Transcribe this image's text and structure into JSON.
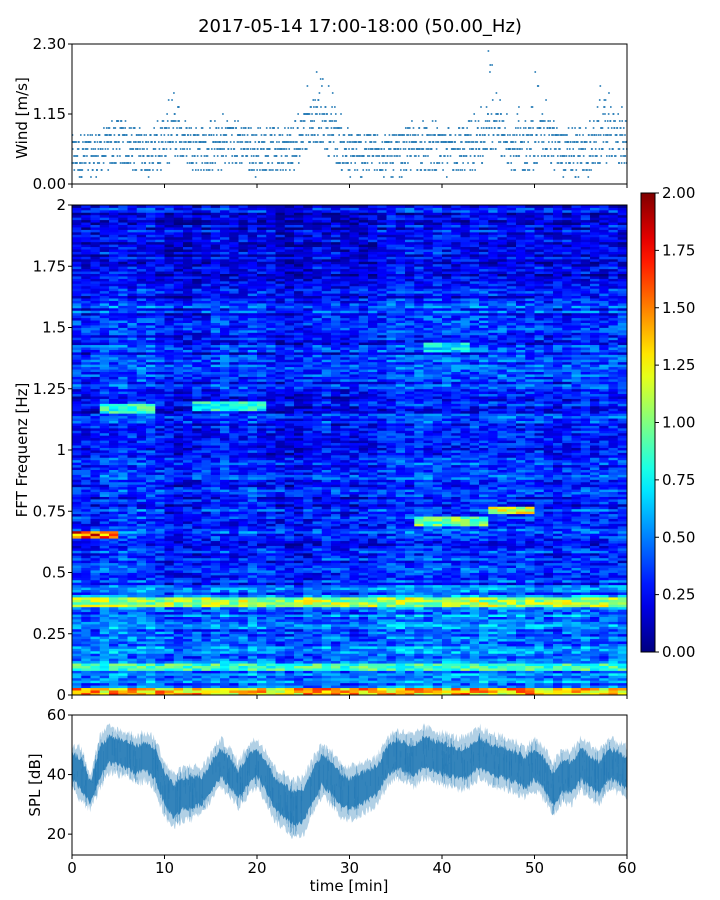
{
  "figure": {
    "title": "2017-05-14 17:00-18:00 (50.00_Hz)"
  },
  "colors": {
    "series": "#1f77b4",
    "jet": [
      "#00007f",
      "#0000ff",
      "#007fff",
      "#00ffff",
      "#7fff7f",
      "#ffff00",
      "#ff7f00",
      "#ff0000",
      "#7f0000"
    ]
  },
  "chart_data": [
    {
      "type": "scatter",
      "name": "wind",
      "ylabel": "Wind [m/s]",
      "xlim": [
        0,
        60
      ],
      "ylim": [
        0,
        2.3
      ],
      "y_ticks": [
        0,
        1.15,
        2.3
      ],
      "y_tick_labels": [
        "0.00",
        "1.15",
        "2.30"
      ],
      "x_ticks": [
        0,
        10,
        20,
        30,
        40,
        50,
        60
      ],
      "quantization_step": 0.115,
      "approx_points": 1800,
      "envelope": {
        "t": [
          0,
          2,
          4,
          5,
          6,
          8,
          10,
          11,
          12,
          14,
          16,
          17,
          18,
          20,
          22,
          24,
          25,
          26,
          27,
          28,
          30,
          32,
          35,
          37,
          40,
          42,
          44,
          45,
          46,
          47,
          48,
          50,
          51,
          52,
          54,
          56,
          57,
          58,
          60
        ],
        "median": [
          0.45,
          0.45,
          0.55,
          0.7,
          0.6,
          0.5,
          0.55,
          0.8,
          0.7,
          0.55,
          0.55,
          0.7,
          0.65,
          0.5,
          0.55,
          0.5,
          0.85,
          1.0,
          1.0,
          0.8,
          0.45,
          0.5,
          0.45,
          0.55,
          0.5,
          0.5,
          0.55,
          0.8,
          0.8,
          0.65,
          0.55,
          0.6,
          0.8,
          0.6,
          0.45,
          0.5,
          0.7,
          0.75,
          0.6
        ],
        "max": [
          0.7,
          0.8,
          1.0,
          1.2,
          1.05,
          0.9,
          1.1,
          1.75,
          1.1,
          1.0,
          1.2,
          1.2,
          1.05,
          0.9,
          1.0,
          1.0,
          1.7,
          1.85,
          1.75,
          1.75,
          0.8,
          0.9,
          0.8,
          1.1,
          1.0,
          0.9,
          1.2,
          2.3,
          1.55,
          1.3,
          1.15,
          2.0,
          1.5,
          1.1,
          1.0,
          1.0,
          1.6,
          1.55,
          1.1
        ]
      }
    },
    {
      "type": "heatmap",
      "name": "spectrogram",
      "ylabel": "FFT Frequenz [Hz]",
      "xlim": [
        0,
        60
      ],
      "ylim": [
        0,
        2
      ],
      "y_ticks": [
        0,
        0.25,
        0.5,
        0.75,
        1,
        1.25,
        1.5,
        1.75,
        2
      ],
      "y_tick_labels": [
        "0",
        "0.25",
        "0.5",
        "0.75",
        "1",
        "1.25",
        "1.5",
        "1.75",
        "2"
      ],
      "x_ticks": [
        0,
        10,
        20,
        30,
        40,
        50,
        60
      ],
      "colormap": "jet",
      "clim": [
        0,
        2
      ],
      "colorbar_ticks": [
        0,
        0.25,
        0.5,
        0.75,
        1,
        1.25,
        1.5,
        1.75,
        2
      ],
      "colorbar_tick_labels": [
        "0.00",
        "0.25",
        "0.50",
        "0.75",
        "1.00",
        "1.25",
        "1.50",
        "1.75",
        "2.00"
      ],
      "n_time_bins": 60,
      "n_freq_bins": 200,
      "background_level": 0.3,
      "features": [
        {
          "f": [
            0.0,
            0.03
          ],
          "t": [
            0,
            60
          ],
          "level": 1.4
        },
        {
          "f": [
            0.1,
            0.13
          ],
          "t": [
            0,
            60
          ],
          "level": 0.9
        },
        {
          "f": [
            0.36,
            0.4
          ],
          "t": [
            0,
            60
          ],
          "level": 1.1
        },
        {
          "f": [
            0.64,
            0.67
          ],
          "t": [
            0,
            5
          ],
          "level": 1.6
        },
        {
          "f": [
            0.69,
            0.73
          ],
          "t": [
            37,
            45
          ],
          "level": 1.0
        },
        {
          "f": [
            0.74,
            0.77
          ],
          "t": [
            45,
            50
          ],
          "level": 1.2
        },
        {
          "f": [
            1.15,
            1.19
          ],
          "t": [
            3,
            9
          ],
          "level": 0.9
        },
        {
          "f": [
            1.16,
            1.2
          ],
          "t": [
            13,
            21
          ],
          "level": 0.8
        },
        {
          "f": [
            1.4,
            1.44
          ],
          "t": [
            38,
            43
          ],
          "level": 0.75
        }
      ]
    },
    {
      "type": "area",
      "name": "spl",
      "ylabel": "SPL [dB]",
      "xlabel": "time [min]",
      "xlim": [
        0,
        60
      ],
      "ylim": [
        13,
        60
      ],
      "y_ticks": [
        20,
        40,
        60
      ],
      "y_tick_labels": [
        "20",
        "40",
        "60"
      ],
      "x_ticks": [
        0,
        10,
        20,
        30,
        40,
        50,
        60
      ],
      "x_tick_labels": [
        "0",
        "10",
        "20",
        "30",
        "40",
        "50",
        "60"
      ],
      "envelope": {
        "t": [
          0,
          1,
          2,
          3,
          4,
          5,
          6,
          7,
          8,
          9,
          10,
          11,
          12,
          13,
          14,
          15,
          16,
          17,
          18,
          19,
          20,
          21,
          22,
          23,
          24,
          25,
          26,
          27,
          28,
          29,
          30,
          31,
          32,
          33,
          34,
          35,
          36,
          37,
          38,
          39,
          40,
          41,
          42,
          43,
          44,
          45,
          46,
          47,
          48,
          49,
          50,
          51,
          52,
          53,
          54,
          55,
          56,
          57,
          58,
          59,
          60
        ],
        "upper": [
          50,
          49,
          40,
          53,
          56,
          55,
          54,
          53,
          54,
          52,
          44,
          40,
          42,
          43,
          42,
          47,
          52,
          49,
          44,
          50,
          52,
          48,
          42,
          40,
          38,
          39,
          45,
          50,
          48,
          44,
          42,
          44,
          45,
          46,
          52,
          55,
          54,
          53,
          56,
          55,
          54,
          53,
          52,
          53,
          56,
          54,
          53,
          52,
          51,
          49,
          52,
          49,
          44,
          48,
          48,
          52,
          50,
          48,
          52,
          51,
          49
        ],
        "lower": [
          36,
          31,
          28,
          35,
          41,
          40,
          39,
          37,
          38,
          35,
          26,
          22,
          25,
          25,
          27,
          31,
          36,
          33,
          29,
          33,
          36,
          31,
          24,
          22,
          19,
          20,
          27,
          33,
          30,
          26,
          25,
          26,
          28,
          30,
          36,
          39,
          38,
          36,
          39,
          38,
          37,
          36,
          35,
          36,
          39,
          37,
          36,
          35,
          34,
          32,
          35,
          32,
          26,
          31,
          30,
          35,
          32,
          30,
          35,
          34,
          32
        ]
      }
    }
  ]
}
